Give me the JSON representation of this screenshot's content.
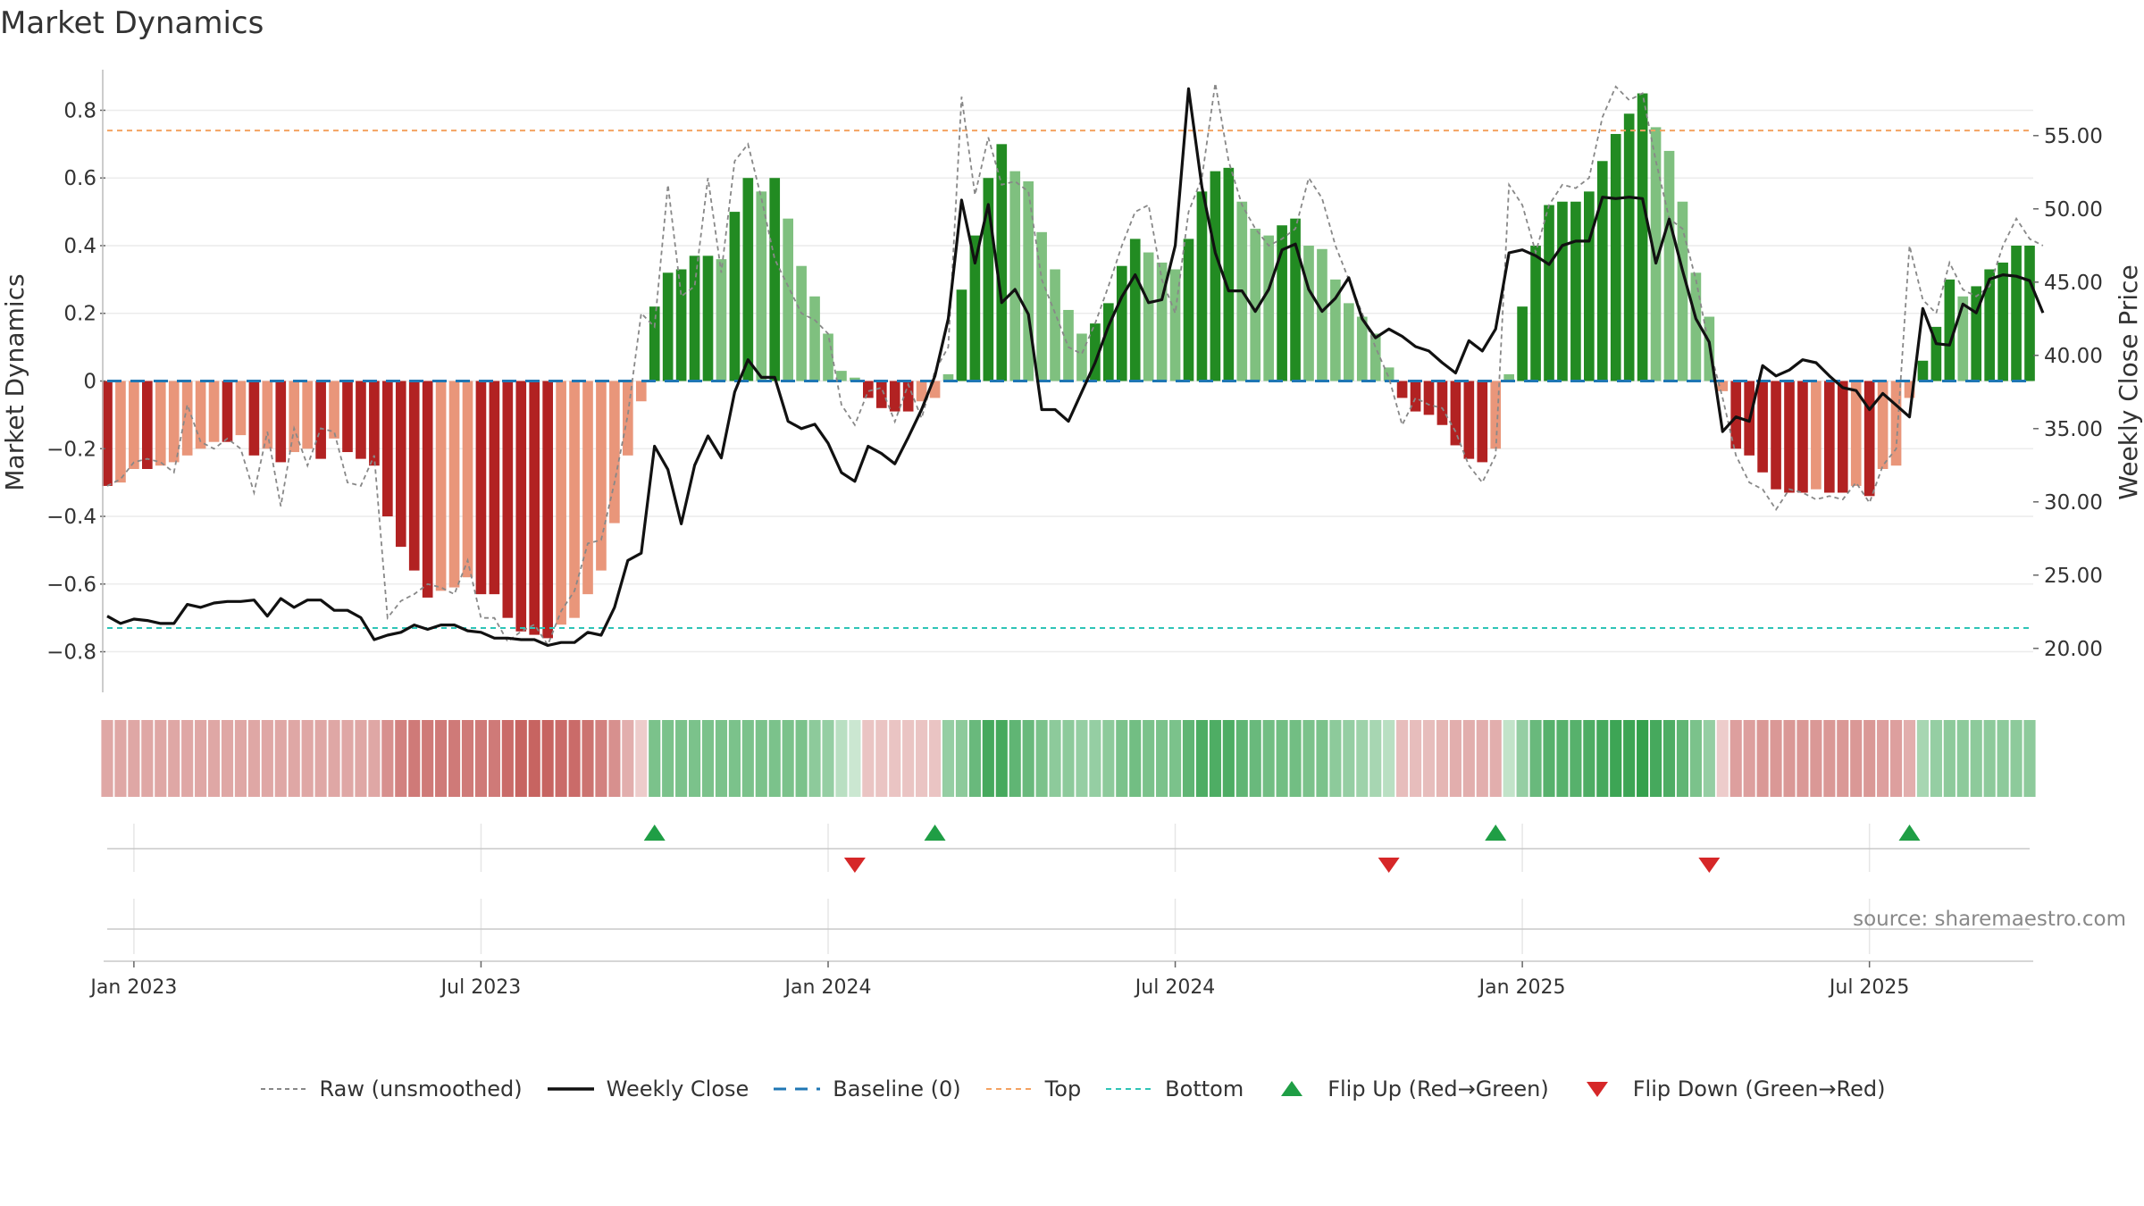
{
  "chart_data": {
    "title": "Market Dynamics",
    "type": "bar+line",
    "source_text": "source: sharemaestro.com",
    "y_left": {
      "label": "Market Dynamics",
      "range": [
        -0.92,
        0.92
      ],
      "ticks": [
        "0.8",
        "0.6",
        "0.4",
        "0.2",
        "0",
        "−0.2",
        "−0.4",
        "−0.6",
        "−0.8"
      ],
      "tick_values": [
        0.8,
        0.6,
        0.4,
        0.2,
        0,
        -0.2,
        -0.4,
        -0.6,
        -0.8
      ]
    },
    "y_right": {
      "label": "Weekly Close Price",
      "range": [
        17.0,
        59.5
      ],
      "ticks": [
        "55.00",
        "50.00",
        "45.00",
        "40.00",
        "35.00",
        "30.00",
        "25.00",
        "20.00"
      ],
      "tick_values": [
        55,
        50,
        45,
        40,
        35,
        30,
        25,
        20
      ]
    },
    "x_ticks": [
      "Jan 2023",
      "Jul 2023",
      "Jan 2024",
      "Jul 2024",
      "Jan 2025",
      "Jul 2025"
    ],
    "x_tick_weeks": [
      2,
      28,
      54,
      80,
      106,
      132
    ],
    "top_level": 0.74,
    "bottom_level": -0.73,
    "baseline": 0,
    "colors": {
      "green_strong": "#228b22",
      "green_light": "#7fc07f",
      "red_strong": "#b22222",
      "red_light": "#e9967a",
      "raw": "#888888",
      "close": "#111111",
      "baseline": "#1f77b4",
      "top": "#f4a261",
      "bottom": "#2ec4b6",
      "flip_up": "#1f9e45",
      "flip_down": "#d62728"
    },
    "dynamics": [
      -0.31,
      -0.3,
      -0.26,
      -0.26,
      -0.25,
      -0.24,
      -0.22,
      -0.2,
      -0.18,
      -0.18,
      -0.16,
      -0.22,
      -0.2,
      -0.24,
      -0.21,
      -0.2,
      -0.23,
      -0.17,
      -0.21,
      -0.23,
      -0.25,
      -0.4,
      -0.49,
      -0.56,
      -0.64,
      -0.62,
      -0.61,
      -0.58,
      -0.63,
      -0.63,
      -0.7,
      -0.74,
      -0.75,
      -0.76,
      -0.72,
      -0.7,
      -0.63,
      -0.56,
      -0.42,
      -0.22,
      -0.06,
      0.22,
      0.32,
      0.33,
      0.37,
      0.37,
      0.36,
      0.5,
      0.6,
      0.56,
      0.6,
      0.48,
      0.34,
      0.25,
      0.14,
      0.03,
      0.01,
      -0.05,
      -0.08,
      -0.09,
      -0.09,
      -0.06,
      -0.05,
      0.02,
      0.27,
      0.43,
      0.6,
      0.7,
      0.62,
      0.59,
      0.44,
      0.33,
      0.21,
      0.14,
      0.17,
      0.23,
      0.34,
      0.42,
      0.38,
      0.35,
      0.33,
      0.42,
      0.56,
      0.62,
      0.63,
      0.53,
      0.45,
      0.43,
      0.46,
      0.48,
      0.4,
      0.39,
      0.3,
      0.23,
      0.19,
      0.14,
      0.04,
      -0.05,
      -0.09,
      -0.1,
      -0.13,
      -0.19,
      -0.23,
      -0.24,
      -0.2,
      0.02,
      0.22,
      0.4,
      0.52,
      0.53,
      0.53,
      0.56,
      0.65,
      0.73,
      0.79,
      0.85,
      0.75,
      0.68,
      0.53,
      0.32,
      0.19,
      -0.03,
      -0.2,
      -0.22,
      -0.27,
      -0.32,
      -0.33,
      -0.33,
      -0.32,
      -0.33,
      -0.33,
      -0.31,
      -0.34,
      -0.26,
      -0.25,
      -0.05,
      0.06,
      0.16,
      0.3,
      0.25,
      0.28,
      0.33,
      0.35,
      0.4,
      0.4
    ],
    "raw": [
      -0.31,
      -0.29,
      -0.24,
      -0.23,
      -0.24,
      -0.27,
      -0.07,
      -0.18,
      -0.2,
      -0.17,
      -0.2,
      -0.33,
      -0.15,
      -0.37,
      -0.14,
      -0.25,
      -0.14,
      -0.15,
      -0.3,
      -0.31,
      -0.22,
      -0.7,
      -0.65,
      -0.63,
      -0.6,
      -0.61,
      -0.63,
      -0.53,
      -0.7,
      -0.7,
      -0.77,
      -0.74,
      -0.72,
      -0.78,
      -0.68,
      -0.62,
      -0.48,
      -0.47,
      -0.3,
      -0.1,
      0.2,
      0.16,
      0.58,
      0.25,
      0.28,
      0.6,
      0.32,
      0.65,
      0.7,
      0.54,
      0.36,
      0.28,
      0.2,
      0.18,
      0.14,
      -0.07,
      -0.13,
      -0.03,
      -0.02,
      -0.12,
      -0.01,
      -0.11,
      0.03,
      0.1,
      0.84,
      0.55,
      0.72,
      0.58,
      0.59,
      0.56,
      0.3,
      0.2,
      0.1,
      0.08,
      0.17,
      0.28,
      0.4,
      0.5,
      0.52,
      0.3,
      0.2,
      0.5,
      0.6,
      0.88,
      0.65,
      0.52,
      0.45,
      0.4,
      0.42,
      0.45,
      0.6,
      0.54,
      0.4,
      0.3,
      0.2,
      0.1,
      0.01,
      -0.13,
      -0.05,
      -0.07,
      -0.08,
      -0.15,
      -0.25,
      -0.3,
      -0.22,
      0.58,
      0.52,
      0.38,
      0.52,
      0.58,
      0.57,
      0.6,
      0.78,
      0.87,
      0.83,
      0.85,
      0.65,
      0.48,
      0.45,
      0.3,
      0.1,
      -0.05,
      -0.22,
      -0.3,
      -0.32,
      -0.38,
      -0.32,
      -0.33,
      -0.35,
      -0.34,
      -0.35,
      -0.3,
      -0.36,
      -0.25,
      -0.2,
      0.4,
      0.24,
      0.2,
      0.35,
      0.27,
      0.25,
      0.28,
      0.4,
      0.48,
      0.42,
      0.4
    ],
    "weekly_close": [
      22.2,
      21.7,
      22.0,
      21.9,
      21.7,
      21.7,
      23.0,
      22.8,
      23.1,
      23.2,
      23.2,
      23.3,
      22.2,
      23.4,
      22.8,
      23.3,
      23.3,
      22.6,
      22.6,
      22.1,
      20.6,
      20.9,
      21.1,
      21.6,
      21.3,
      21.6,
      21.6,
      21.2,
      21.1,
      20.7,
      20.7,
      20.6,
      20.6,
      20.2,
      20.4,
      20.4,
      21.1,
      20.9,
      22.8,
      26.0,
      26.5,
      33.8,
      32.2,
      28.5,
      32.5,
      34.5,
      33.0,
      37.5,
      39.7,
      38.5,
      38.5,
      35.5,
      35.0,
      35.3,
      34.0,
      32.0,
      31.4,
      33.8,
      33.3,
      32.6,
      34.4,
      36.3,
      38.6,
      42.5,
      50.6,
      46.3,
      50.3,
      43.6,
      44.5,
      42.8,
      36.3,
      36.3,
      35.5,
      37.5,
      39.5,
      42.0,
      44.0,
      45.5,
      43.6,
      43.8,
      47.5,
      58.2,
      51.5,
      47.0,
      44.4,
      44.4,
      43.0,
      44.5,
      47.2,
      47.6,
      44.5,
      43.0,
      43.9,
      45.3,
      42.5,
      41.2,
      41.8,
      41.3,
      40.6,
      40.3,
      39.5,
      38.8,
      41.0,
      40.3,
      41.8,
      47.0,
      47.2,
      46.8,
      46.2,
      47.5,
      47.8,
      47.8,
      50.8,
      50.7,
      50.8,
      50.7,
      46.3,
      49.3,
      45.8,
      42.5,
      40.9,
      34.8,
      35.8,
      35.5,
      39.3,
      38.6,
      39.0,
      39.7,
      39.5,
      38.6,
      37.8,
      37.6,
      36.3,
      37.4,
      36.6,
      35.8,
      43.2,
      40.8,
      40.7,
      43.5,
      42.9,
      45.2,
      45.5,
      45.4,
      45.1,
      42.9
    ],
    "strip_values": [
      -0.3,
      -0.3,
      -0.3,
      -0.3,
      -0.3,
      -0.3,
      -0.3,
      -0.3,
      -0.3,
      -0.3,
      -0.3,
      -0.3,
      -0.3,
      -0.3,
      -0.3,
      -0.3,
      -0.3,
      -0.3,
      -0.3,
      -0.3,
      -0.3,
      -0.45,
      -0.55,
      -0.6,
      -0.6,
      -0.6,
      -0.6,
      -0.6,
      -0.6,
      -0.6,
      -0.7,
      -0.75,
      -0.75,
      -0.75,
      -0.7,
      -0.7,
      -0.65,
      -0.55,
      -0.45,
      -0.25,
      -0.05,
      0.45,
      0.45,
      0.45,
      0.45,
      0.45,
      0.45,
      0.45,
      0.45,
      0.45,
      0.45,
      0.45,
      0.45,
      0.35,
      0.3,
      0.1,
      0.0,
      -0.1,
      -0.1,
      -0.1,
      -0.1,
      -0.1,
      -0.1,
      0.3,
      0.35,
      0.55,
      0.75,
      0.75,
      0.6,
      0.55,
      0.45,
      0.35,
      0.35,
      0.3,
      0.3,
      0.35,
      0.45,
      0.5,
      0.45,
      0.45,
      0.45,
      0.6,
      0.7,
      0.7,
      0.7,
      0.6,
      0.55,
      0.5,
      0.5,
      0.5,
      0.45,
      0.45,
      0.35,
      0.3,
      0.25,
      0.2,
      0.1,
      -0.15,
      -0.15,
      -0.15,
      -0.2,
      -0.25,
      -0.25,
      -0.25,
      -0.25,
      0.05,
      0.3,
      0.55,
      0.65,
      0.65,
      0.65,
      0.7,
      0.75,
      0.8,
      0.8,
      0.85,
      0.75,
      0.7,
      0.6,
      0.45,
      0.3,
      -0.05,
      -0.35,
      -0.35,
      -0.4,
      -0.4,
      -0.4,
      -0.4,
      -0.4,
      -0.4,
      -0.4,
      -0.4,
      -0.4,
      -0.35,
      -0.35,
      -0.25,
      0.2,
      0.3,
      0.35,
      0.35,
      0.35,
      0.35,
      0.35,
      0.35,
      0.35
    ],
    "flip_up_weeks": [
      41,
      62,
      104,
      135
    ],
    "flip_down_weeks": [
      56,
      96,
      120
    ],
    "legend": [
      {
        "key": "raw",
        "label": "Raw (unsmoothed)"
      },
      {
        "key": "close",
        "label": "Weekly Close"
      },
      {
        "key": "baseline",
        "label": "Baseline (0)"
      },
      {
        "key": "top",
        "label": "Top"
      },
      {
        "key": "bottom",
        "label": "Bottom"
      },
      {
        "key": "flip_up",
        "label": "Flip Up (Red→Green)"
      },
      {
        "key": "flip_down",
        "label": "Flip Down (Green→Red)"
      }
    ]
  }
}
